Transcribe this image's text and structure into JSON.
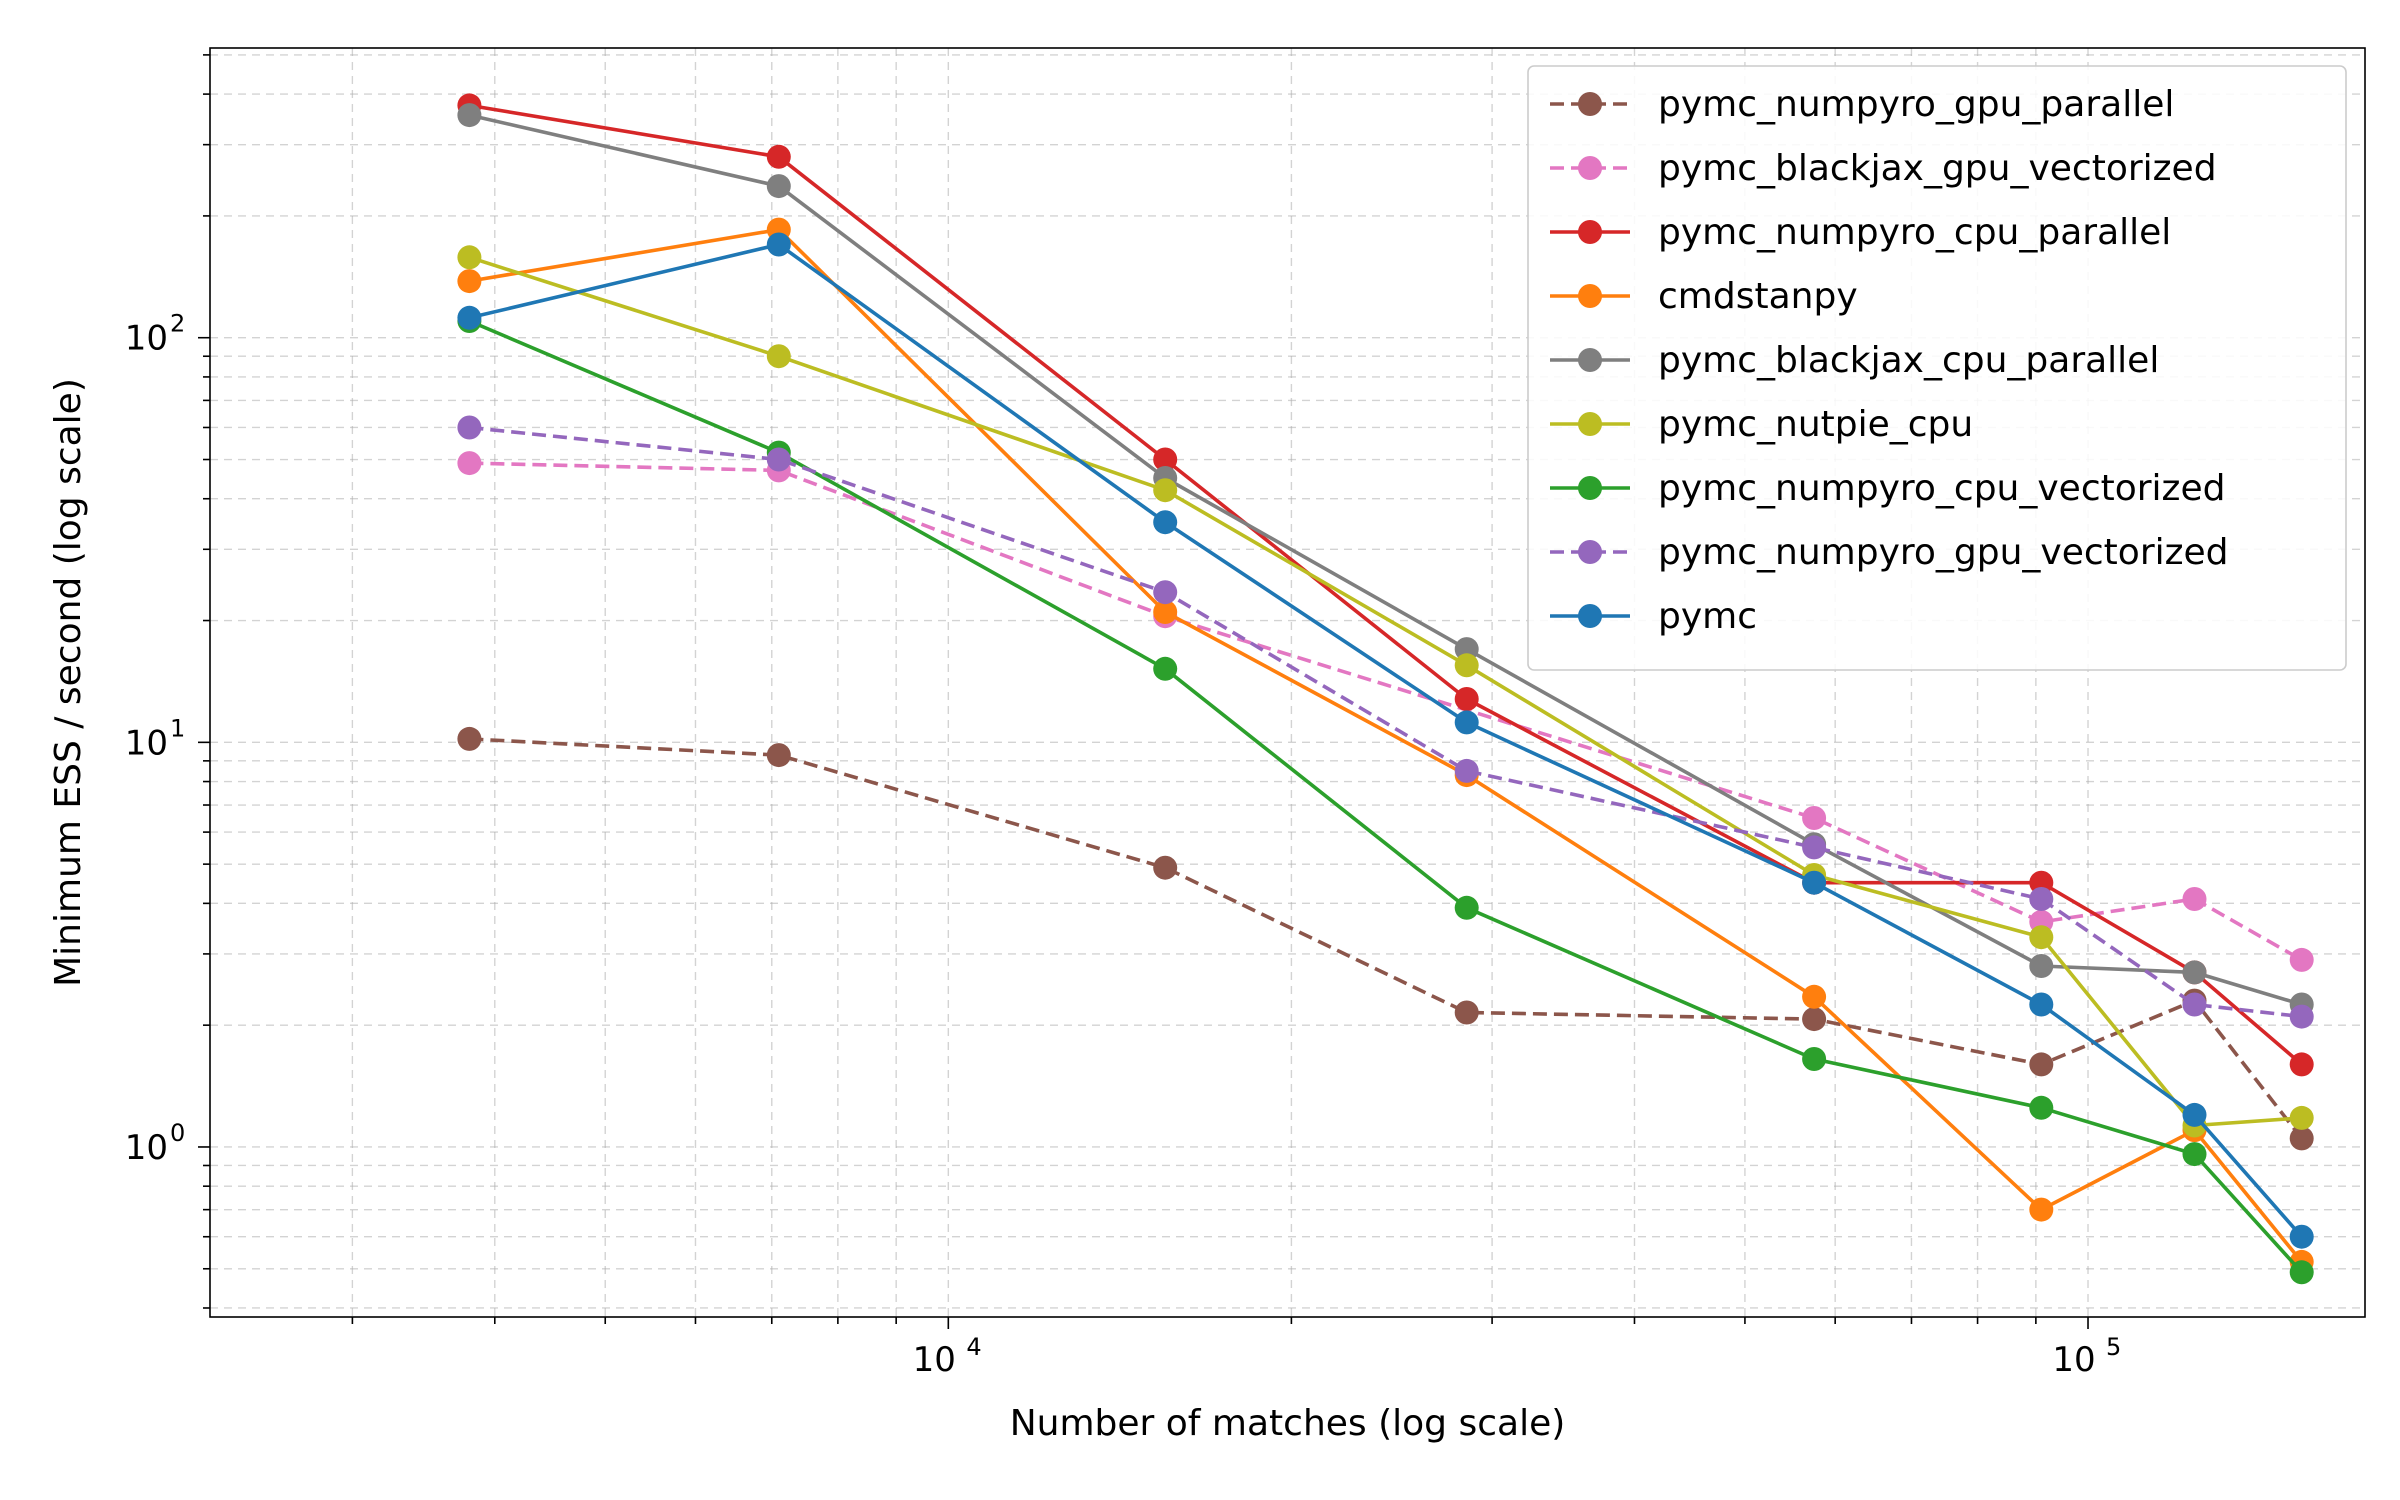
{
  "chart_data": {
    "type": "line",
    "title": "",
    "xlabel": "Number of matches (log scale)",
    "ylabel": "Minimum ESS / second (log scale)",
    "xscale": "log",
    "yscale": "log",
    "xlim": [
      2250,
      175000
    ],
    "ylim": [
      0.38,
      520
    ],
    "grid": true,
    "legend_position": "top-right",
    "x": [
      3800,
      7100,
      15500,
      28500,
      57500,
      91000,
      124000,
      154000
    ],
    "xticks": [
      {
        "base": "10",
        "exp": "4",
        "value": 10000
      },
      {
        "base": "10",
        "exp": "5",
        "value": 100000
      }
    ],
    "yticks": [
      {
        "base": "10",
        "exp": "0",
        "value": 1
      },
      {
        "base": "10",
        "exp": "1",
        "value": 10
      },
      {
        "base": "10",
        "exp": "2",
        "value": 100
      }
    ],
    "series": [
      {
        "name": "pymc_numpyro_gpu_parallel",
        "color": "#8c564b",
        "dashed": true,
        "values": [
          10.2,
          9.3,
          4.9,
          2.15,
          2.07,
          1.6,
          2.3,
          1.05
        ]
      },
      {
        "name": "pymc_blackjax_gpu_vectorized",
        "color": "#e377c2",
        "dashed": true,
        "values": [
          49,
          47,
          20.5,
          null,
          6.5,
          3.6,
          4.1,
          2.9
        ]
      },
      {
        "name": "pymc_numpyro_cpu_parallel",
        "color": "#d62728",
        "dashed": false,
        "values": [
          375,
          280,
          50,
          12.8,
          4.5,
          4.5,
          2.7,
          1.6
        ]
      },
      {
        "name": "cmdstanpy",
        "color": "#ff7f0e",
        "dashed": false,
        "values": [
          138,
          185,
          21,
          8.3,
          2.35,
          0.7,
          1.1,
          0.52
        ]
      },
      {
        "name": "pymc_blackjax_cpu_parallel",
        "color": "#7f7f7f",
        "dashed": false,
        "values": [
          355,
          237,
          45,
          17,
          5.6,
          2.8,
          2.7,
          2.25
        ]
      },
      {
        "name": "pymc_nutpie_cpu",
        "color": "#bcbd22",
        "dashed": false,
        "values": [
          158,
          90,
          42,
          15.5,
          4.7,
          3.3,
          1.13,
          1.18
        ]
      },
      {
        "name": "pymc_numpyro_cpu_vectorized",
        "color": "#2ca02c",
        "dashed": false,
        "values": [
          110,
          52,
          15.2,
          3.9,
          1.65,
          1.25,
          0.96,
          0.49
        ]
      },
      {
        "name": "pymc_numpyro_gpu_vectorized",
        "color": "#9467bd",
        "dashed": true,
        "values": [
          60,
          50,
          23.5,
          8.5,
          5.5,
          4.1,
          2.25,
          2.1
        ]
      },
      {
        "name": "pymc",
        "color": "#1f77b4",
        "dashed": false,
        "values": [
          112,
          170,
          35,
          11.2,
          4.5,
          2.25,
          1.2,
          0.6
        ]
      }
    ]
  }
}
